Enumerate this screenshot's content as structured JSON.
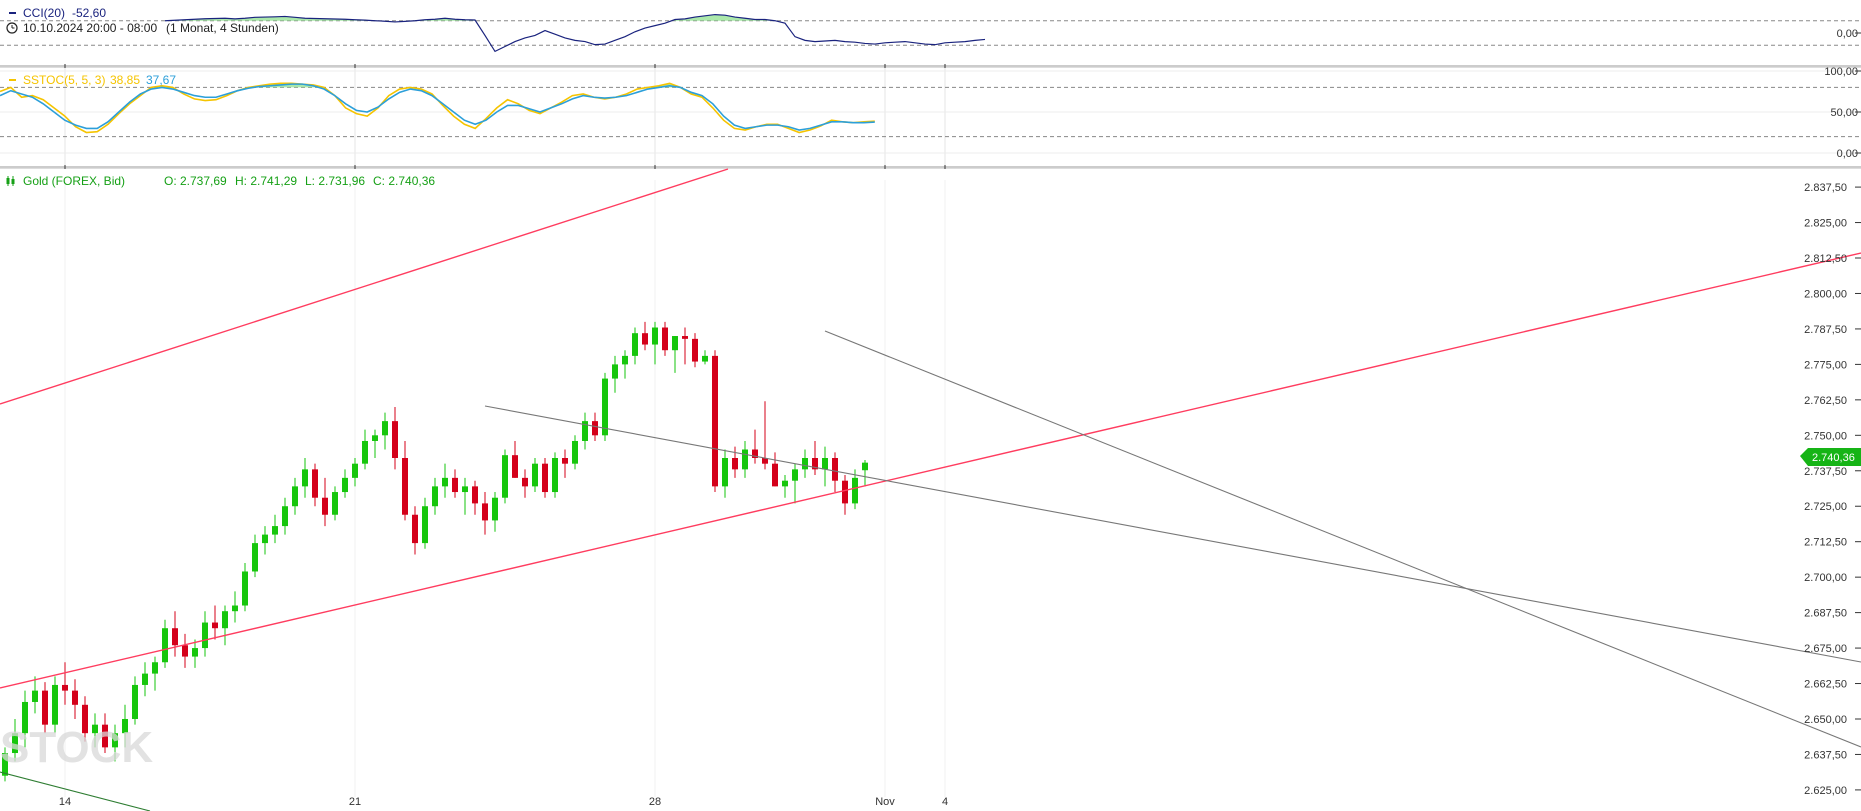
{
  "colors": {
    "up": "#16c60c",
    "down": "#d4001a",
    "cci": "#1a237e",
    "cci_fill": "#8fe08f",
    "stoch_k": "#f5c400",
    "stoch_d": "#2c9fd9",
    "trend_red": "#ff3c5f",
    "trend_grey": "#777777",
    "trend_green": "#2e7d32",
    "grid_dash": "#888888",
    "price_badge": "#16b416"
  },
  "header": {
    "cci_label": "CCI(20)",
    "cci_value": "-52,60",
    "period": "10.10.2024 20:00 - 08:00",
    "period_detail": "(1 Monat, 4 Stunden)",
    "stoch_label": "SSTOC(5, 5, 3)",
    "stoch_k_value": "38,85",
    "stoch_d_value": "37,67",
    "ohlc_instrument": "Gold (FOREX, Bid)",
    "ohlc_o": "O: 2.737,69",
    "ohlc_h": "H: 2.741,29",
    "ohlc_l": "L: 2.731,96",
    "ohlc_c": "C: 2.740,36",
    "watermark": "STOCK"
  },
  "icons": {
    "clock": "clock-icon",
    "candles": "candlestick-icon"
  },
  "chart_data": [
    {
      "type": "line",
      "name": "CCI",
      "series": [
        {
          "name": "CCI(20)",
          "values": [
            100,
            104,
            108,
            112,
            116,
            118,
            120,
            115,
            120,
            128,
            130,
            132,
            135,
            128,
            120,
            118,
            116,
            114,
            112,
            108,
            105,
            100,
            96,
            90,
            95,
            100,
            108,
            112,
            120,
            112,
            108,
            106,
            -20,
            -150,
            -110,
            -70,
            -40,
            -20,
            20,
            -10,
            -40,
            -60,
            -70,
            -95,
            -90,
            -60,
            -30,
            10,
            40,
            60,
            80,
            110,
            115,
            130,
            140,
            150,
            145,
            130,
            120,
            110,
            110,
            100,
            80,
            -30,
            -60,
            -70,
            -65,
            -60,
            -70,
            -75,
            -85,
            -90,
            -80,
            -75,
            -70,
            -80,
            -90,
            -95,
            -80,
            -75,
            -70,
            -60,
            -52.6
          ]
        }
      ],
      "y_ticks": [
        "0,00"
      ],
      "fill_above": 100
    },
    {
      "type": "line",
      "name": "SSTOC",
      "series": [
        {
          "name": "K",
          "values": [
            75,
            80,
            68,
            70,
            65,
            55,
            45,
            32,
            25,
            26,
            35,
            48,
            60,
            70,
            80,
            82,
            80,
            72,
            66,
            64,
            65,
            70,
            76,
            80,
            82,
            84,
            85,
            85,
            84,
            83,
            80,
            70,
            55,
            48,
            45,
            55,
            70,
            78,
            80,
            78,
            72,
            58,
            45,
            35,
            30,
            42,
            55,
            65,
            60,
            52,
            48,
            55,
            62,
            70,
            72,
            68,
            66,
            68,
            72,
            78,
            80,
            82,
            85,
            80,
            72,
            68,
            55,
            40,
            30,
            28,
            32,
            35,
            35,
            30,
            25,
            28,
            33,
            40,
            38,
            37,
            38,
            38.85
          ]
        },
        {
          "name": "D",
          "values": [
            70,
            76,
            72,
            68,
            60,
            50,
            40,
            34,
            30,
            30,
            38,
            50,
            62,
            72,
            78,
            80,
            78,
            74,
            70,
            68,
            68,
            72,
            76,
            79,
            81,
            82,
            83,
            84,
            84,
            82,
            78,
            70,
            60,
            52,
            50,
            56,
            66,
            74,
            78,
            76,
            70,
            60,
            50,
            40,
            35,
            40,
            50,
            58,
            58,
            54,
            50,
            55,
            60,
            66,
            70,
            68,
            67,
            68,
            70,
            74,
            78,
            80,
            82,
            80,
            74,
            70,
            60,
            45,
            34,
            30,
            32,
            34,
            34,
            32,
            28,
            30,
            34,
            38,
            38,
            37,
            37,
            37.67
          ]
        }
      ],
      "y_ticks": [
        "100,00",
        "50,00",
        "0,00"
      ],
      "ylim": [
        0,
        100
      ]
    },
    {
      "type": "candlestick",
      "name": "Gold (FOREX, Bid)",
      "ohlc": [
        [
          2630,
          2640,
          2628,
          2638
        ],
        [
          2638,
          2650,
          2635,
          2645
        ],
        [
          2645,
          2660,
          2640,
          2656
        ],
        [
          2656,
          2665,
          2652,
          2660
        ],
        [
          2660,
          2663,
          2645,
          2648
        ],
        [
          2648,
          2665,
          2645,
          2662
        ],
        [
          2662,
          2670,
          2655,
          2660
        ],
        [
          2660,
          2664,
          2650,
          2655
        ],
        [
          2655,
          2658,
          2642,
          2645
        ],
        [
          2645,
          2652,
          2640,
          2648
        ],
        [
          2648,
          2652,
          2638,
          2640
        ],
        [
          2640,
          2648,
          2635,
          2645
        ],
        [
          2645,
          2655,
          2640,
          2650
        ],
        [
          2650,
          2665,
          2648,
          2662
        ],
        [
          2662,
          2670,
          2658,
          2666
        ],
        [
          2666,
          2672,
          2660,
          2670
        ],
        [
          2670,
          2685,
          2668,
          2682
        ],
        [
          2682,
          2688,
          2672,
          2676
        ],
        [
          2676,
          2680,
          2668,
          2672
        ],
        [
          2672,
          2678,
          2668,
          2675
        ],
        [
          2675,
          2688,
          2672,
          2684
        ],
        [
          2684,
          2690,
          2678,
          2682
        ],
        [
          2682,
          2690,
          2676,
          2688
        ],
        [
          2688,
          2695,
          2684,
          2690
        ],
        [
          2690,
          2705,
          2688,
          2702
        ],
        [
          2702,
          2715,
          2700,
          2712
        ],
        [
          2712,
          2718,
          2708,
          2715
        ],
        [
          2715,
          2722,
          2712,
          2718
        ],
        [
          2718,
          2728,
          2715,
          2725
        ],
        [
          2725,
          2735,
          2722,
          2732
        ],
        [
          2732,
          2742,
          2728,
          2738
        ],
        [
          2738,
          2740,
          2725,
          2728
        ],
        [
          2728,
          2735,
          2718,
          2722
        ],
        [
          2722,
          2732,
          2720,
          2730
        ],
        [
          2730,
          2738,
          2728,
          2735
        ],
        [
          2735,
          2742,
          2732,
          2740
        ],
        [
          2740,
          2752,
          2738,
          2748
        ],
        [
          2748,
          2752,
          2742,
          2750
        ],
        [
          2750,
          2758,
          2745,
          2755
        ],
        [
          2755,
          2760,
          2738,
          2742
        ],
        [
          2742,
          2748,
          2720,
          2722
        ],
        [
          2722,
          2725,
          2708,
          2712
        ],
        [
          2712,
          2728,
          2710,
          2725
        ],
        [
          2725,
          2735,
          2722,
          2732
        ],
        [
          2732,
          2740,
          2728,
          2735
        ],
        [
          2735,
          2738,
          2728,
          2730
        ],
        [
          2730,
          2735,
          2722,
          2732
        ],
        [
          2732,
          2734,
          2722,
          2726
        ],
        [
          2726,
          2730,
          2715,
          2720
        ],
        [
          2720,
          2730,
          2716,
          2728
        ],
        [
          2728,
          2745,
          2726,
          2743
        ],
        [
          2743,
          2748,
          2735,
          2735
        ],
        [
          2735,
          2738,
          2728,
          2732
        ],
        [
          2732,
          2742,
          2730,
          2740
        ],
        [
          2740,
          2742,
          2728,
          2730
        ],
        [
          2730,
          2744,
          2728,
          2742
        ],
        [
          2742,
          2745,
          2735,
          2740
        ],
        [
          2740,
          2750,
          2738,
          2748
        ],
        [
          2748,
          2758,
          2745,
          2755
        ],
        [
          2755,
          2758,
          2748,
          2750
        ],
        [
          2750,
          2772,
          2748,
          2770
        ],
        [
          2770,
          2778,
          2765,
          2775
        ],
        [
          2775,
          2780,
          2770,
          2778
        ],
        [
          2778,
          2788,
          2775,
          2786
        ],
        [
          2786,
          2790,
          2780,
          2782
        ],
        [
          2782,
          2790,
          2775,
          2788
        ],
        [
          2788,
          2790,
          2778,
          2780
        ],
        [
          2780,
          2785,
          2772,
          2785
        ],
        [
          2785,
          2788,
          2775,
          2784
        ],
        [
          2784,
          2786,
          2774,
          2776
        ],
        [
          2776,
          2780,
          2775,
          2778
        ],
        [
          2778,
          2780,
          2730,
          2732
        ],
        [
          2732,
          2745,
          2728,
          2742
        ],
        [
          2742,
          2746,
          2735,
          2738
        ],
        [
          2738,
          2748,
          2735,
          2745
        ],
        [
          2745,
          2752,
          2740,
          2742
        ],
        [
          2742,
          2762,
          2738,
          2740
        ],
        [
          2740,
          2744,
          2732,
          2732
        ],
        [
          2732,
          2736,
          2728,
          2734
        ],
        [
          2734,
          2740,
          2726,
          2738
        ],
        [
          2738,
          2745,
          2735,
          2742
        ],
        [
          2742,
          2748,
          2736,
          2738
        ],
        [
          2738,
          2746,
          2732,
          2742
        ],
        [
          2742,
          2744,
          2730,
          2734
        ],
        [
          2734,
          2736,
          2722,
          2726
        ],
        [
          2726,
          2738,
          2724,
          2735
        ],
        [
          2737.69,
          2741.29,
          2731.96,
          2740.36
        ]
      ],
      "x_ticks": [
        "14",
        "21",
        "28",
        "Nov",
        "4"
      ],
      "y_ticks": [
        "2.837,50",
        "2.825,00",
        "2.812,50",
        "2.800,00",
        "2.787,50",
        "2.775,00",
        "2.762,50",
        "2.750,00",
        "2.737,50",
        "2.725,00",
        "2.712,50",
        "2.700,00",
        "2.687,50",
        "2.675,00",
        "2.662,50",
        "2.650,00",
        "2.637,50",
        "2.625,00"
      ],
      "ylim": [
        2622.5,
        2840
      ],
      "last_price": "2.740,36"
    }
  ]
}
